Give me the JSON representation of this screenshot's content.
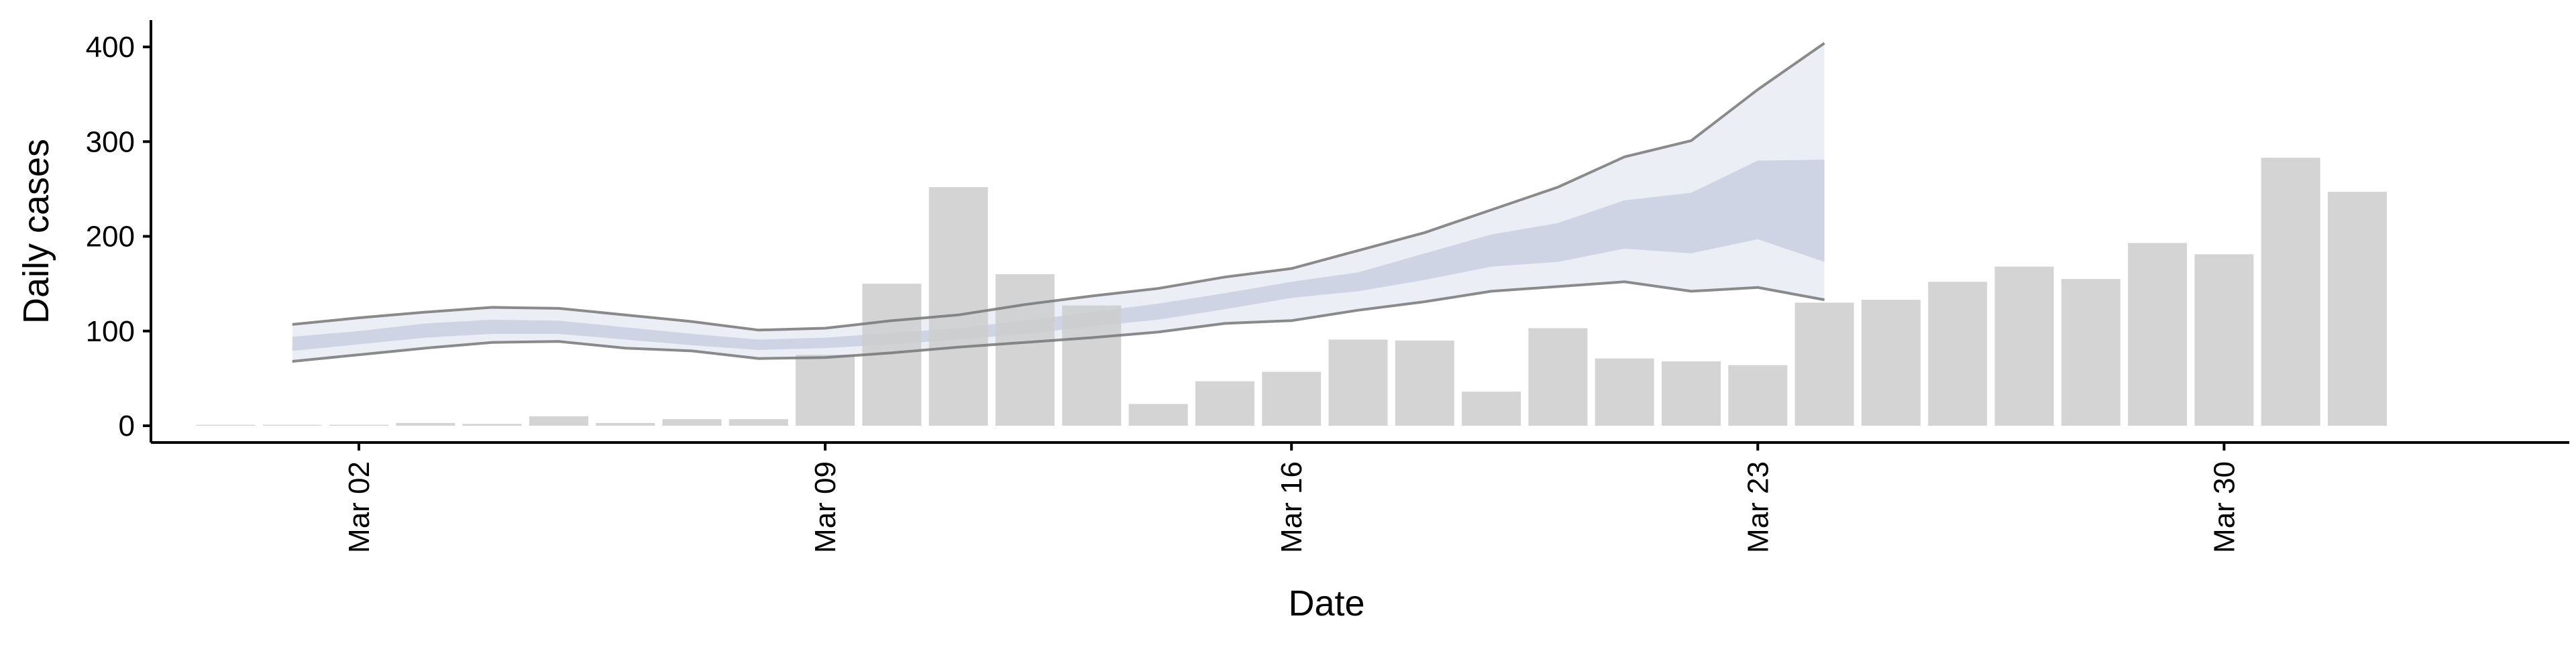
{
  "chart_data": {
    "type": "bar",
    "xlabel": "Date",
    "ylabel": "Daily cases",
    "ylim": [
      -20,
      425
    ],
    "grid": false,
    "legend": "none",
    "x_tick_labels": [
      {
        "date": "2020-03-02",
        "label": "Mar 02"
      },
      {
        "date": "2020-03-09",
        "label": "Mar 09"
      },
      {
        "date": "2020-03-16",
        "label": "Mar 16"
      },
      {
        "date": "2020-03-23",
        "label": "Mar 23"
      },
      {
        "date": "2020-03-30",
        "label": "Mar 30"
      }
    ],
    "y_ticks": [
      0,
      100,
      200,
      300,
      400
    ],
    "bars": {
      "color": "#cccccc",
      "dates": [
        "2020-02-29",
        "2020-03-01",
        "2020-03-02",
        "2020-03-03",
        "2020-03-04",
        "2020-03-05",
        "2020-03-06",
        "2020-03-07",
        "2020-03-08",
        "2020-03-09",
        "2020-03-10",
        "2020-03-11",
        "2020-03-12",
        "2020-03-13",
        "2020-03-14",
        "2020-03-15",
        "2020-03-16",
        "2020-03-17",
        "2020-03-18",
        "2020-03-19",
        "2020-03-20",
        "2020-03-21",
        "2020-03-22",
        "2020-03-23",
        "2020-03-24",
        "2020-03-25",
        "2020-03-26",
        "2020-03-27",
        "2020-03-28",
        "2020-03-29",
        "2020-03-30",
        "2020-03-31",
        "2020-04-01",
        "2020-04-02",
        "2020-04-03"
      ],
      "values": [
        1,
        1,
        1,
        3,
        2,
        10,
        3,
        7,
        7,
        75,
        150,
        252,
        160,
        127,
        23,
        47,
        57,
        91,
        90,
        36,
        103,
        71,
        68,
        64,
        130,
        133,
        152,
        168,
        155,
        193,
        181,
        283,
        247,
        0,
        0
      ]
    },
    "estimate": {
      "dates": [
        "2020-03-01",
        "2020-03-02",
        "2020-03-03",
        "2020-03-04",
        "2020-03-05",
        "2020-03-06",
        "2020-03-07",
        "2020-03-08",
        "2020-03-09",
        "2020-03-10",
        "2020-03-11",
        "2020-03-12",
        "2020-03-13",
        "2020-03-14",
        "2020-03-15",
        "2020-03-16",
        "2020-03-17",
        "2020-03-18",
        "2020-03-19",
        "2020-03-20",
        "2020-03-21",
        "2020-03-22",
        "2020-03-23",
        "2020-03-24"
      ],
      "outer_upper": [
        107,
        114,
        120,
        125,
        124,
        117,
        110,
        101,
        103,
        111,
        117,
        128,
        137,
        145,
        157,
        166,
        185,
        204,
        228,
        252,
        284,
        301,
        355,
        404
      ],
      "outer_lower": [
        68,
        75,
        82,
        88,
        89,
        82,
        79,
        71,
        72,
        77,
        83,
        88,
        93,
        99,
        108,
        111,
        122,
        131,
        142,
        147,
        152,
        142,
        146,
        133
      ],
      "inner_upper": [
        94,
        100,
        108,
        112,
        111,
        104,
        97,
        91,
        93,
        98,
        103,
        111,
        120,
        129,
        140,
        152,
        162,
        182,
        202,
        214,
        238,
        246,
        280,
        281
      ],
      "inner_lower": [
        79,
        86,
        93,
        97,
        97,
        91,
        85,
        80,
        82,
        86,
        91,
        97,
        105,
        112,
        123,
        135,
        142,
        154,
        168,
        173,
        187,
        182,
        197,
        173
      ],
      "band_color": "#bcc3da",
      "outer_line_color": "#777777"
    }
  }
}
